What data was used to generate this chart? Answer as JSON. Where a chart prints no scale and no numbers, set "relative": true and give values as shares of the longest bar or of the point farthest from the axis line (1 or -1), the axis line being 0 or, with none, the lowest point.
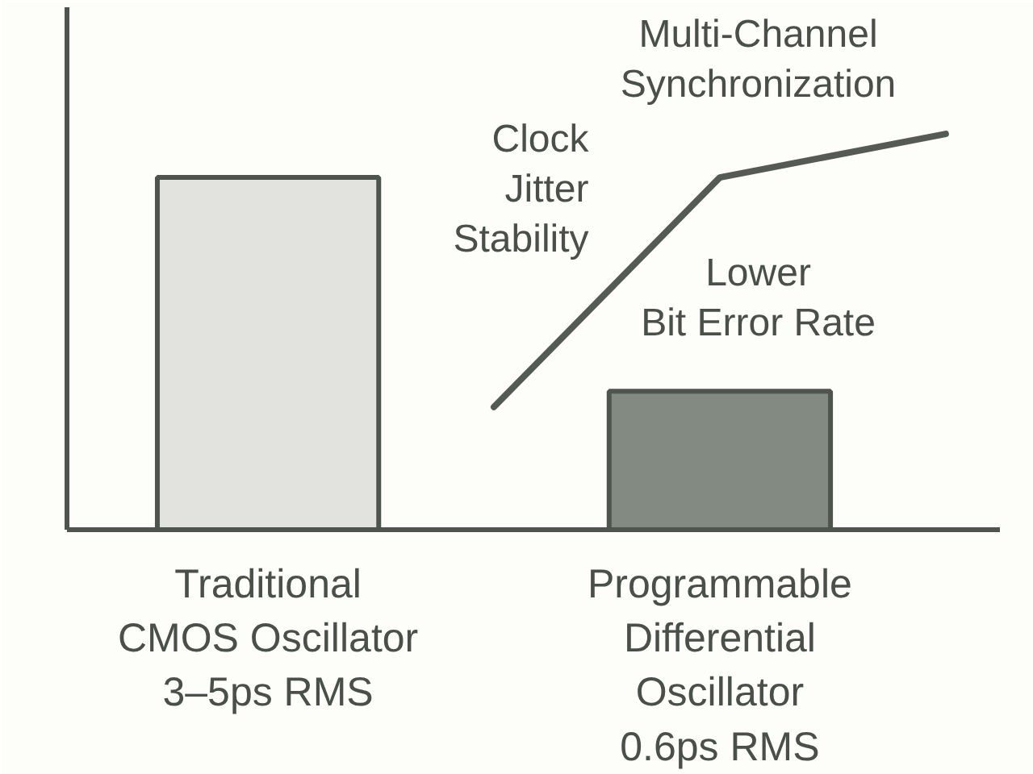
{
  "chart_data": {
    "type": "bar",
    "relative": true,
    "categories": [
      "Traditional\nCMOS Oscillator\n3–5ps RMS",
      null,
      "Programmable\nDifferential\nOscillator\n0.6ps RMS",
      null
    ],
    "series": [
      {
        "colors": [
          "#e2e2de",
          null,
          "#838a82",
          null
        ],
        "values": [
          0.89,
          null,
          0.35,
          null
        ]
      },
      {
        "type": "line",
        "color": "#555a55",
        "values": [
          null,
          0.31,
          0.89,
          1.0
        ]
      }
    ],
    "annotations": [
      "Multi-Channel\nSynchronization",
      "Clock\nJitter\nStability",
      "Lower\nBit Error Rate"
    ]
  }
}
